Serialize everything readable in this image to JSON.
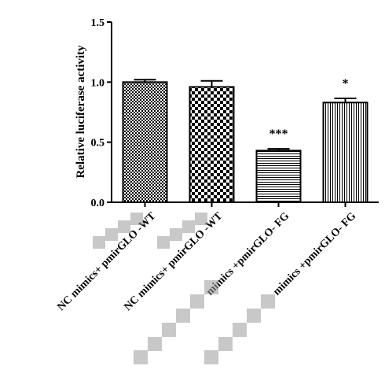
{
  "chart_data": {
    "type": "bar",
    "ylabel": "Relative luciferase activity",
    "ylim": [
      0,
      1.5
    ],
    "yticks": [
      "0.0",
      "0.5",
      "1.0",
      "1.5"
    ],
    "categories": [
      "NC mimics+ pmirGLO -WT",
      "NC mimics+ pmirGLO -WT",
      "mimics +pmirGLO- FG",
      "mimics +pmirGLO- FG"
    ],
    "values": [
      1.0,
      0.96,
      0.43,
      0.83
    ],
    "errors": [
      0.02,
      0.05,
      0.015,
      0.035
    ],
    "significance": [
      "",
      "",
      "***",
      "*"
    ],
    "fill_patterns": [
      "checker-fine",
      "checker-coarse",
      "horizontal-lines",
      "vertical-lines"
    ],
    "colors": {
      "bar_stroke": "#000000",
      "axis": "#000000",
      "blur": "#9a9a9a"
    }
  }
}
